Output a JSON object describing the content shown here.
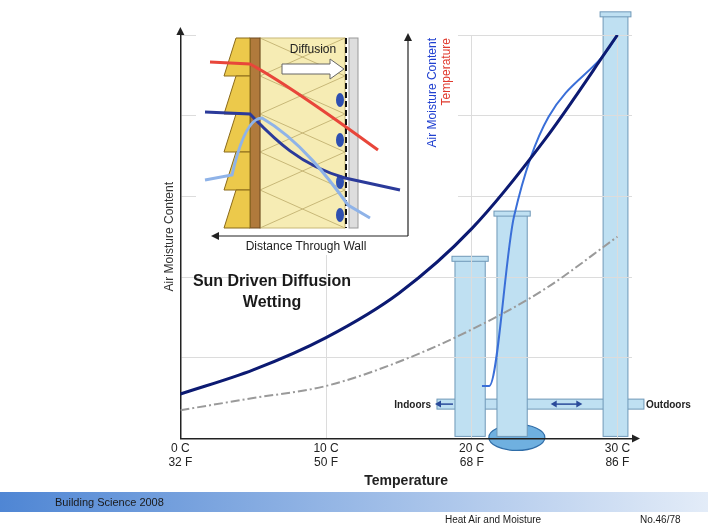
{
  "chart_data": {
    "type": "line",
    "x_label": "Temperature",
    "y_label": "Air Moisture Content",
    "annotation": "Sun Driven Diffusion\nWetting",
    "flow_labels": {
      "indoors": "Indoors",
      "outdoors": "Outdoors"
    },
    "xlim": [
      0,
      31
    ],
    "xticks": [
      {
        "value": 0,
        "label": "0 C\n32 F"
      },
      {
        "value": 10,
        "label": "10 C\n50 F"
      },
      {
        "value": 20,
        "label": "20 C\n68 F"
      },
      {
        "value": 30,
        "label": "30 C\n86 F"
      }
    ],
    "ylim": [
      0,
      100
    ],
    "yticks": [
      0,
      20,
      40,
      60,
      80,
      100
    ],
    "tick_labels": "x",
    "grid": true,
    "series": [
      {
        "color": "#0c1a72",
        "line_style": "solid",
        "marker": "none",
        "x": [
          0,
          5,
          10,
          15,
          20,
          25,
          30
        ],
        "values": [
          11,
          17,
          25,
          36,
          52,
          74,
          100
        ]
      },
      {
        "color": "#9a9a9a",
        "line_style": "dashdot",
        "marker": "none",
        "x": [
          0,
          5,
          10,
          15,
          20,
          25,
          30
        ],
        "values": [
          7,
          10,
          13,
          19,
          27,
          37,
          50
        ]
      },
      {
        "color": "#3a6fd8",
        "line_style": "solid",
        "marker": "none",
        "x": [
          20.7,
          21.2,
          22.9,
          30
        ],
        "values": [
          13,
          13,
          55,
          100
        ]
      }
    ]
  },
  "inset": {
    "arrow_label": "Diffusion",
    "x_label": "Distance Through Wall",
    "y_labels": [
      {
        "text": "Air Moisture Content",
        "color": "#2040d0"
      },
      {
        "text": "Temperature",
        "color": "#e03a2e"
      }
    ]
  },
  "footer": {
    "left": "Building Science 2008",
    "right": "Heat Air and Moisture",
    "page": "No.46/78"
  }
}
